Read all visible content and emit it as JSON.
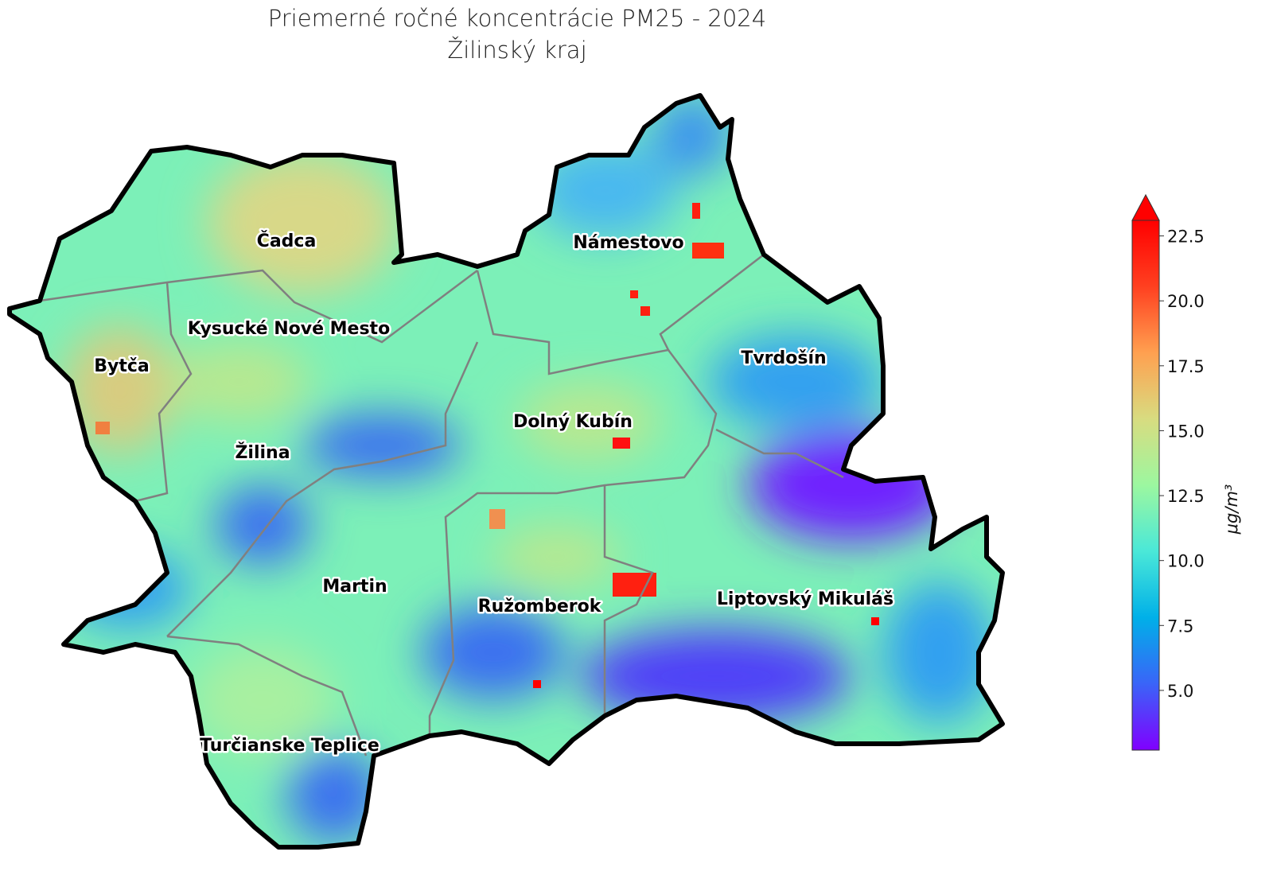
{
  "title": {
    "line1": "Priemerné ročné koncentrácie PM25 - 2024",
    "line2": "Žilinský kraj"
  },
  "districts": [
    {
      "name": "Čadca"
    },
    {
      "name": "Námestovo"
    },
    {
      "name": "Kysucké Nové Mesto"
    },
    {
      "name": "Bytča"
    },
    {
      "name": "Tvrdošín"
    },
    {
      "name": "Dolný Kubín"
    },
    {
      "name": "Žilina"
    },
    {
      "name": "Martin"
    },
    {
      "name": "Ružomberok"
    },
    {
      "name": "Liptovský Mikuláš"
    },
    {
      "name": "Turčianske Teplice"
    }
  ],
  "colorbar": {
    "label": "μg/m³",
    "colormap": "rainbow",
    "min": 2.7,
    "max": 23.1,
    "extend": "max",
    "ticks": [
      "5.0",
      "7.5",
      "10.0",
      "12.5",
      "15.0",
      "17.5",
      "20.0",
      "22.5"
    ],
    "tick_values": [
      5.0,
      7.5,
      10.0,
      12.5,
      15.0,
      17.5,
      20.0,
      22.5
    ],
    "colors": [
      "#8000ff",
      "#3a64f8",
      "#00b0e8",
      "#4ae8d8",
      "#9cf7a0",
      "#d8dc80",
      "#ffa050",
      "#ff4020",
      "#ff0000"
    ]
  }
}
